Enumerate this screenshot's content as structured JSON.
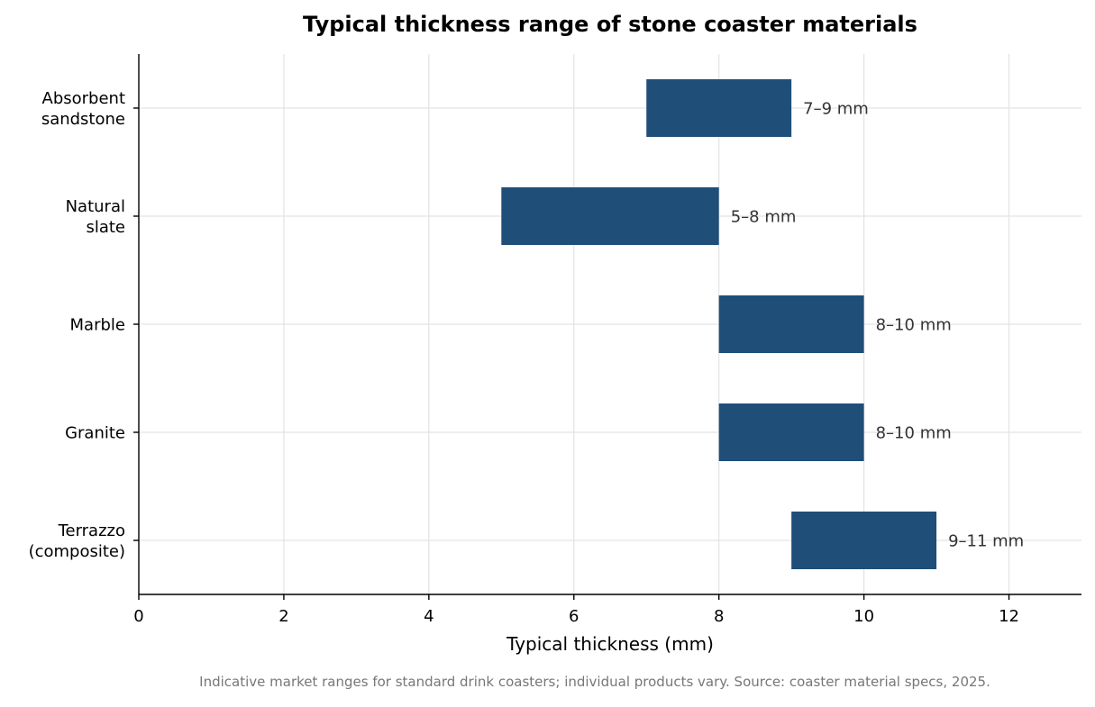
{
  "chart_data": {
    "type": "bar",
    "orientation": "horizontal",
    "title": "Typical thickness range of stone coaster materials",
    "xlabel": "Typical thickness (mm)",
    "ylabel": "",
    "xlim": [
      0,
      13
    ],
    "xticks": [
      0,
      2,
      4,
      6,
      8,
      10,
      12
    ],
    "grid": true,
    "bar_color": "#1f4e79",
    "caption": "Indicative market ranges for standard drink coasters; individual products vary. Source: coaster material specs, 2025.",
    "categories": [
      {
        "lines": [
          "Absorbent",
          "sandstone"
        ],
        "min": 7,
        "max": 9,
        "label": "7–9 mm"
      },
      {
        "lines": [
          "Natural",
          "slate"
        ],
        "min": 5,
        "max": 8,
        "label": "5–8 mm"
      },
      {
        "lines": [
          "Marble"
        ],
        "min": 8,
        "max": 10,
        "label": "8–10 mm"
      },
      {
        "lines": [
          "Granite"
        ],
        "min": 8,
        "max": 10,
        "label": "8–10 mm"
      },
      {
        "lines": [
          "Terrazzo",
          "(composite)"
        ],
        "min": 9,
        "max": 11,
        "label": "9–11 mm"
      }
    ]
  }
}
